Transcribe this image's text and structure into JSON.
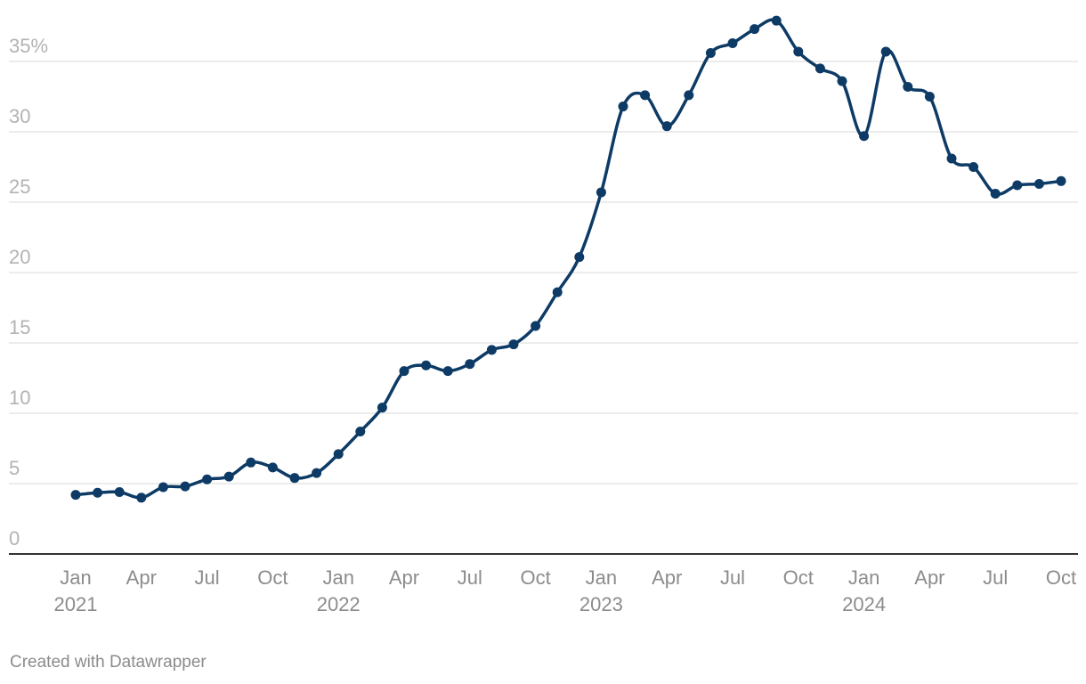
{
  "credit": "Created with Datawrapper",
  "colors": {
    "series": "#0d3b66",
    "grid": "#d9d9d9",
    "baseline": "#333333",
    "ytick_text": "#b3b3b3",
    "xtick_text": "#8c8c8c"
  },
  "chart_data": {
    "type": "line",
    "title": "",
    "xlabel": "",
    "ylabel": "",
    "grid": true,
    "markers": true,
    "ylim": [
      0,
      38
    ],
    "yticks": [
      {
        "value": 0,
        "label": "0"
      },
      {
        "value": 5,
        "label": "5"
      },
      {
        "value": 10,
        "label": "10"
      },
      {
        "value": 15,
        "label": "15"
      },
      {
        "value": 20,
        "label": "20"
      },
      {
        "value": 25,
        "label": "25"
      },
      {
        "value": 30,
        "label": "30"
      },
      {
        "value": 35,
        "label": "35%"
      }
    ],
    "xticks": [
      {
        "date": "2021-01",
        "lines": [
          "Jan",
          "2021"
        ]
      },
      {
        "date": "2021-04",
        "lines": [
          "Apr"
        ]
      },
      {
        "date": "2021-07",
        "lines": [
          "Jul"
        ]
      },
      {
        "date": "2021-10",
        "lines": [
          "Oct"
        ]
      },
      {
        "date": "2022-01",
        "lines": [
          "Jan",
          "2022"
        ]
      },
      {
        "date": "2022-04",
        "lines": [
          "Apr"
        ]
      },
      {
        "date": "2022-07",
        "lines": [
          "Jul"
        ]
      },
      {
        "date": "2022-10",
        "lines": [
          "Oct"
        ]
      },
      {
        "date": "2023-01",
        "lines": [
          "Jan",
          "2023"
        ]
      },
      {
        "date": "2023-04",
        "lines": [
          "Apr"
        ]
      },
      {
        "date": "2023-07",
        "lines": [
          "Jul"
        ]
      },
      {
        "date": "2023-10",
        "lines": [
          "Oct"
        ]
      },
      {
        "date": "2024-01",
        "lines": [
          "Jan",
          "2024"
        ]
      },
      {
        "date": "2024-04",
        "lines": [
          "Apr"
        ]
      },
      {
        "date": "2024-07",
        "lines": [
          "Jul"
        ]
      },
      {
        "date": "2024-10",
        "lines": [
          "Oct"
        ]
      }
    ],
    "series": [
      {
        "x": [
          "2021-01",
          "2021-02",
          "2021-03",
          "2021-04",
          "2021-05",
          "2021-06",
          "2021-07",
          "2021-08",
          "2021-09",
          "2021-10",
          "2021-11",
          "2021-12",
          "2022-01",
          "2022-02",
          "2022-03",
          "2022-04",
          "2022-05",
          "2022-06",
          "2022-07",
          "2022-08",
          "2022-09",
          "2022-10",
          "2022-11",
          "2022-12",
          "2023-01",
          "2023-02",
          "2023-03",
          "2023-04",
          "2023-05",
          "2023-06",
          "2023-07",
          "2023-08",
          "2023-09",
          "2023-10",
          "2023-11",
          "2023-12",
          "2024-01",
          "2024-02",
          "2024-03",
          "2024-04",
          "2024-05",
          "2024-06",
          "2024-07",
          "2024-08",
          "2024-09",
          "2024-10"
        ],
        "y": [
          4.2,
          4.35,
          4.4,
          4.0,
          4.75,
          4.8,
          5.3,
          5.5,
          6.5,
          6.15,
          5.4,
          5.75,
          7.1,
          8.7,
          10.4,
          13.0,
          13.4,
          13.0,
          13.5,
          14.5,
          14.9,
          16.2,
          18.6,
          21.1,
          25.7,
          31.8,
          32.6,
          30.4,
          32.6,
          35.6,
          36.3,
          37.3,
          37.9,
          35.7,
          34.5,
          33.6,
          29.7,
          35.7,
          33.2,
          32.5,
          28.1,
          27.5,
          25.6,
          26.2,
          26.3,
          26.5
        ]
      }
    ]
  }
}
